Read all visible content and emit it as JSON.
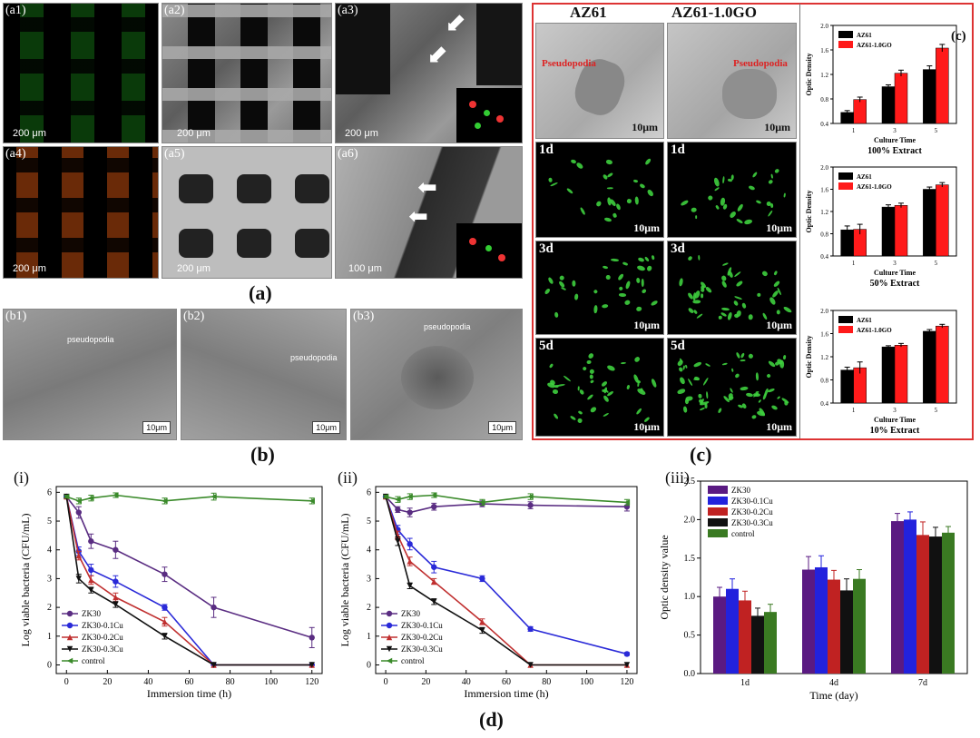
{
  "panel_a": {
    "labels": [
      "(a1)",
      "(a2)",
      "(a3)",
      "(a4)",
      "(a5)",
      "(a6)"
    ],
    "scales": [
      "200 μm",
      "200 μm",
      "200 μm",
      "200 μm",
      "200 μm",
      "100 μm"
    ],
    "caption": "(a)"
  },
  "panel_b": {
    "labels": [
      "(b1)",
      "(b2)",
      "(b3)"
    ],
    "pseudopodia": "pseudopodia",
    "scale": "10μm",
    "caption": "(b)"
  },
  "panel_c": {
    "col1": "AZ61",
    "col2": "AZ61-1.0GO",
    "pseudopodia": "Pseudopodia",
    "scale": "10μm",
    "days": [
      "1d",
      "1d",
      "3d",
      "3d",
      "5d",
      "5d"
    ],
    "caption": "(c)",
    "chart_label": "(c)"
  },
  "panel_d": {
    "caption": "(d)",
    "labels": [
      "(i)",
      "(ii)",
      "(iii)"
    ]
  },
  "chart_data": [
    {
      "type": "bar",
      "title": "100% Extract",
      "xlabel": "Culture Time",
      "ylabel": "Optic Density",
      "categories": [
        "1",
        "3",
        "5"
      ],
      "ylim": [
        0.4,
        2.0
      ],
      "yticks": [
        "0.4",
        "0.8",
        "1.2",
        "1.6",
        "2.0"
      ],
      "series": [
        {
          "name": "AZ61",
          "values": [
            0.58,
            1.0,
            1.28
          ],
          "err": [
            0.03,
            0.03,
            0.06
          ],
          "color": "#000000"
        },
        {
          "name": "AZ61-1.0GO",
          "values": [
            0.79,
            1.22,
            1.63
          ],
          "err": [
            0.04,
            0.05,
            0.06
          ],
          "color": "#ff1a1a"
        }
      ]
    },
    {
      "type": "bar",
      "title": "50% Extract",
      "xlabel": "Culture Time",
      "ylabel": "Optic Density",
      "categories": [
        "1",
        "3",
        "5"
      ],
      "ylim": [
        0.4,
        2.0
      ],
      "yticks": [
        "0.4",
        "0.8",
        "1.2",
        "1.6",
        "2.0"
      ],
      "series": [
        {
          "name": "AZ61",
          "values": [
            0.87,
            1.28,
            1.6
          ],
          "err": [
            0.07,
            0.04,
            0.04
          ],
          "color": "#000000"
        },
        {
          "name": "AZ61-1.0GO",
          "values": [
            0.88,
            1.31,
            1.68
          ],
          "err": [
            0.09,
            0.04,
            0.04
          ],
          "color": "#ff1a1a"
        }
      ]
    },
    {
      "type": "bar",
      "title": "10% Extract",
      "xlabel": "Culture Time",
      "ylabel": "Optic Density",
      "categories": [
        "1",
        "3",
        "5"
      ],
      "ylim": [
        0.4,
        2.0
      ],
      "yticks": [
        "0.4",
        "0.8",
        "1.2",
        "1.6",
        "2.0"
      ],
      "series": [
        {
          "name": "AZ61",
          "values": [
            0.97,
            1.37,
            1.64
          ],
          "err": [
            0.05,
            0.02,
            0.03
          ],
          "color": "#000000"
        },
        {
          "name": "AZ61-1.0GO",
          "values": [
            1.01,
            1.4,
            1.73
          ],
          "err": [
            0.1,
            0.03,
            0.03
          ],
          "color": "#ff1a1a"
        }
      ]
    },
    {
      "type": "line",
      "xlabel": "Immersion time (h)",
      "ylabel": "Log viable bacteria (CFU/mL)",
      "xlim": [
        -5,
        125
      ],
      "ylim": [
        -0.3,
        6.2
      ],
      "xticks": [
        0,
        20,
        40,
        60,
        80,
        100,
        120
      ],
      "yticks": [
        0,
        1,
        2,
        3,
        4,
        5,
        6
      ],
      "series": [
        {
          "name": "ZK30",
          "color": "#5a2d82",
          "marker": "circle",
          "x": [
            0,
            6,
            12,
            24,
            48,
            72,
            120
          ],
          "y": [
            5.85,
            5.3,
            4.3,
            4.0,
            3.15,
            2.0,
            0.95
          ],
          "err": [
            0.05,
            0.2,
            0.25,
            0.3,
            0.25,
            0.35,
            0.35
          ]
        },
        {
          "name": "ZK30-0.1Cu",
          "color": "#2a2ad8",
          "marker": "circle",
          "x": [
            0,
            6,
            12,
            24,
            48,
            72,
            120
          ],
          "y": [
            5.85,
            3.95,
            3.3,
            2.9,
            2.0,
            0,
            0
          ],
          "err": [
            0.05,
            0.15,
            0.2,
            0.2,
            0.1,
            0,
            0
          ]
        },
        {
          "name": "ZK30-0.2Cu",
          "color": "#c03030",
          "marker": "triangle",
          "x": [
            0,
            6,
            12,
            24,
            48,
            72,
            120
          ],
          "y": [
            5.85,
            3.8,
            2.95,
            2.35,
            1.5,
            0,
            0
          ],
          "err": [
            0.05,
            0.15,
            0.15,
            0.15,
            0.15,
            0,
            0
          ]
        },
        {
          "name": "ZK30-0.3Cu",
          "color": "#111111",
          "marker": "triangle-down",
          "x": [
            0,
            6,
            12,
            24,
            48,
            72,
            120
          ],
          "y": [
            5.85,
            3.0,
            2.6,
            2.1,
            1.0,
            0,
            0
          ],
          "err": [
            0.05,
            0.15,
            0.1,
            0.1,
            0.1,
            0,
            0
          ]
        },
        {
          "name": "control",
          "color": "#3a8a2a",
          "marker": "triangle-left",
          "x": [
            0,
            6,
            12,
            24,
            48,
            72,
            120
          ],
          "y": [
            5.85,
            5.7,
            5.8,
            5.9,
            5.7,
            5.85,
            5.7
          ],
          "err": [
            0.05,
            0.1,
            0.1,
            0.08,
            0.1,
            0.12,
            0.1
          ]
        }
      ]
    },
    {
      "type": "line",
      "xlabel": "Immersion time (h)",
      "ylabel": "Log viable bacteria (CFU/mL)",
      "xlim": [
        -5,
        125
      ],
      "ylim": [
        -0.3,
        6.2
      ],
      "xticks": [
        0,
        20,
        40,
        60,
        80,
        100,
        120
      ],
      "yticks": [
        0,
        1,
        2,
        3,
        4,
        5,
        6
      ],
      "series": [
        {
          "name": "ZK30",
          "color": "#5a2d82",
          "marker": "circle",
          "x": [
            0,
            6,
            12,
            24,
            48,
            72,
            120
          ],
          "y": [
            5.85,
            5.4,
            5.3,
            5.5,
            5.6,
            5.55,
            5.5
          ],
          "err": [
            0.05,
            0.1,
            0.15,
            0.12,
            0.1,
            0.12,
            0.15
          ]
        },
        {
          "name": "ZK30-0.1Cu",
          "color": "#2a2ad8",
          "marker": "circle",
          "x": [
            0,
            6,
            12,
            24,
            48,
            72,
            120
          ],
          "y": [
            5.85,
            4.7,
            4.2,
            3.4,
            3.0,
            1.25,
            0.38
          ],
          "err": [
            0.05,
            0.15,
            0.2,
            0.2,
            0.1,
            0.08,
            0.05
          ]
        },
        {
          "name": "ZK30-0.2Cu",
          "color": "#c03030",
          "marker": "triangle",
          "x": [
            0,
            6,
            12,
            24,
            48,
            72,
            120
          ],
          "y": [
            5.85,
            4.5,
            3.6,
            2.9,
            1.5,
            0,
            0
          ],
          "err": [
            0.05,
            0.15,
            0.15,
            0.1,
            0.1,
            0,
            0
          ]
        },
        {
          "name": "ZK30-0.3Cu",
          "color": "#111111",
          "marker": "triangle-down",
          "x": [
            0,
            6,
            12,
            24,
            48,
            72,
            120
          ],
          "y": [
            5.85,
            4.3,
            2.75,
            2.2,
            1.2,
            0,
            0
          ],
          "err": [
            0.05,
            0.15,
            0.1,
            0.1,
            0.1,
            0,
            0
          ]
        },
        {
          "name": "control",
          "color": "#3a8a2a",
          "marker": "triangle-left",
          "x": [
            0,
            6,
            12,
            24,
            48,
            72,
            120
          ],
          "y": [
            5.85,
            5.75,
            5.85,
            5.9,
            5.65,
            5.85,
            5.65
          ],
          "err": [
            0.05,
            0.1,
            0.1,
            0.08,
            0.1,
            0.1,
            0.1
          ]
        }
      ]
    },
    {
      "type": "bar",
      "xlabel": "Time (day)",
      "ylabel": "Optic density value",
      "categories": [
        "1d",
        "4d",
        "7d"
      ],
      "ylim": [
        0,
        2.5
      ],
      "yticks": [
        "0.0",
        "0.5",
        "1.0",
        "1.5",
        "2.0",
        "2.5"
      ],
      "series": [
        {
          "name": "ZK30",
          "color": "#5a1a82",
          "values": [
            1.0,
            1.35,
            1.98
          ],
          "err": [
            0.12,
            0.17,
            0.1
          ]
        },
        {
          "name": "ZK30-0.1Cu",
          "color": "#2222dd",
          "values": [
            1.1,
            1.38,
            2.0
          ],
          "err": [
            0.13,
            0.15,
            0.1
          ]
        },
        {
          "name": "ZK30-0.2Cu",
          "color": "#c02222",
          "values": [
            0.95,
            1.22,
            1.8
          ],
          "err": [
            0.12,
            0.12,
            0.17
          ]
        },
        {
          "name": "ZK30-0.3Cu",
          "color": "#111111",
          "values": [
            0.75,
            1.08,
            1.78
          ],
          "err": [
            0.1,
            0.15,
            0.12
          ]
        },
        {
          "name": "control",
          "color": "#3a7a22",
          "values": [
            0.8,
            1.23,
            1.83
          ],
          "err": [
            0.1,
            0.12,
            0.08
          ]
        }
      ]
    }
  ]
}
